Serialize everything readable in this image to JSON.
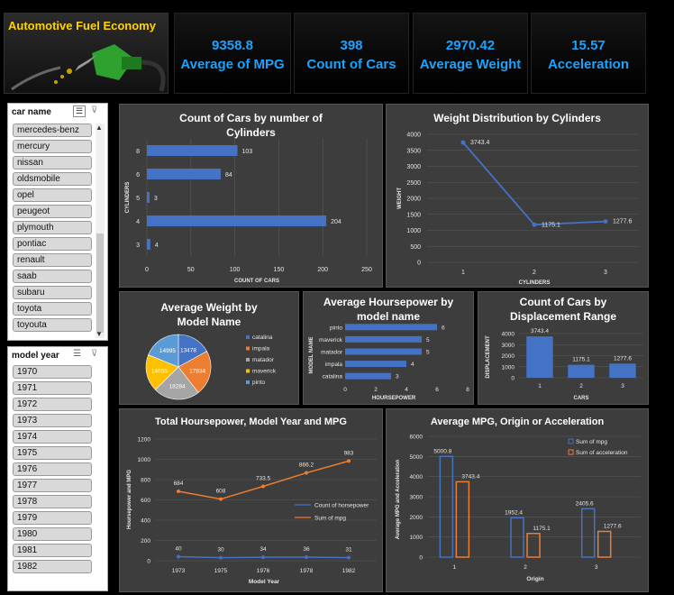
{
  "header": {
    "title": "Automotive Fuel Economy"
  },
  "kpis": [
    {
      "value": "9358.8",
      "label": "Average of MPG"
    },
    {
      "value": "398",
      "label": "Count of Cars"
    },
    {
      "value": "2970.42",
      "label": "Average Weight"
    },
    {
      "value": "15.57",
      "label": "Acceleration"
    }
  ],
  "slicers": {
    "car_name": {
      "title": "car name",
      "items": [
        "mercedes-benz",
        "mercury",
        "nissan",
        "oldsmobile",
        "opel",
        "peugeot",
        "plymouth",
        "pontiac",
        "renault",
        "saab",
        "subaru",
        "toyota",
        "toyouta"
      ]
    },
    "model_year": {
      "title": "model year",
      "items": [
        "1970",
        "1971",
        "1972",
        "1973",
        "1974",
        "1975",
        "1976",
        "1977",
        "1978",
        "1979",
        "1980",
        "1981",
        "1982"
      ]
    }
  },
  "colors": {
    "accent": "#1aa3ff",
    "blue": "#4472c4",
    "orange": "#ed7d31",
    "gray": "#a5a5a5",
    "yellow": "#ffc000",
    "lightblue": "#5b9bd5"
  },
  "chart_data": [
    {
      "id": "cyl_count",
      "type": "bar",
      "orientation": "horizontal",
      "title": "Count of Cars by number of Cylinders",
      "xlabel": "COUNT OF CARS",
      "ylabel": "CYLINDERS",
      "categories": [
        "3",
        "4",
        "5",
        "6",
        "8"
      ],
      "values": [
        4,
        204,
        3,
        84,
        103
      ],
      "xlim": [
        0,
        250
      ],
      "xticks": [
        "0",
        "50",
        "100",
        "150",
        "200",
        "250"
      ]
    },
    {
      "id": "weight_cyl",
      "type": "line",
      "title": "Weight Distribution by Cylinders",
      "xlabel": "CYLINDERS",
      "ylabel": "WEIGHT",
      "categories": [
        "1",
        "2",
        "3"
      ],
      "values": [
        3743.4,
        1175.1,
        1277.6
      ],
      "ylim": [
        0,
        4000
      ],
      "yticks": [
        "0",
        "500",
        "1000",
        "1500",
        "2000",
        "2500",
        "3000",
        "3500",
        "4000"
      ]
    },
    {
      "id": "weight_pie",
      "type": "pie",
      "title": "Average Weight by Model Name",
      "categories": [
        "catalina",
        "impala",
        "matador",
        "maverick",
        "pinto"
      ],
      "values": [
        13478,
        17834,
        18284,
        14655,
        14995
      ],
      "labels": [
        "13478",
        "17834",
        "18284",
        "14655",
        "14995"
      ],
      "legend": "right"
    },
    {
      "id": "hp_model",
      "type": "bar",
      "orientation": "horizontal",
      "title": "Average Hoursepower by model name",
      "xlabel": "HOURSEPOWER",
      "ylabel": "MODEL NAME",
      "categories": [
        "catalina",
        "impala",
        "matador",
        "maverick",
        "pinto"
      ],
      "values": [
        3,
        4,
        5,
        5,
        6
      ],
      "xlim": [
        0,
        8
      ],
      "xticks": [
        "0",
        "2",
        "4",
        "6",
        "8"
      ]
    },
    {
      "id": "disp_range",
      "type": "bar",
      "title": "Count of Cars by Displacement Range",
      "xlabel": "CARS",
      "ylabel": "DISPLACEMENT",
      "categories": [
        "1",
        "2",
        "3"
      ],
      "values": [
        3743.4,
        1175.1,
        1277.6
      ],
      "ylim": [
        0,
        4000
      ],
      "yticks": [
        "0",
        "1000",
        "2000",
        "3000",
        "4000"
      ]
    },
    {
      "id": "hp_year",
      "type": "line",
      "title": "Total Hoursepower,  Model Year and  MPG",
      "xlabel": "Model Year",
      "ylabel": "Hoursepower and  MPG",
      "categories": [
        "1973",
        "1975",
        "1976",
        "1978",
        "1982"
      ],
      "series": [
        {
          "name": "Count of horsepower",
          "values": [
            40,
            30,
            34,
            36,
            31
          ]
        },
        {
          "name": "Sum of mpg",
          "values": [
            684,
            608,
            733.5,
            866.2,
            983
          ]
        }
      ],
      "ylim": [
        0,
        1200
      ],
      "yticks": [
        "0",
        "200",
        "400",
        "600",
        "800",
        "1000",
        "1200"
      ],
      "legend": "right"
    },
    {
      "id": "mpg_origin",
      "type": "bar",
      "title": "Average MPG, Origin or Acceleration",
      "xlabel": "Origin",
      "ylabel": "Average MPG and Acceleration",
      "categories": [
        "1",
        "2",
        "3"
      ],
      "series": [
        {
          "name": "Sum of mpg",
          "values": [
            5000.8,
            1952.4,
            2405.6
          ]
        },
        {
          "name": "Sum of acceleration",
          "values": [
            3743.4,
            1175.1,
            1277.6
          ]
        }
      ],
      "ylim": [
        0,
        6000
      ],
      "yticks": [
        "0",
        "1000",
        "2000",
        "3000",
        "4000",
        "5000",
        "6000"
      ],
      "legend": "top-right"
    }
  ]
}
